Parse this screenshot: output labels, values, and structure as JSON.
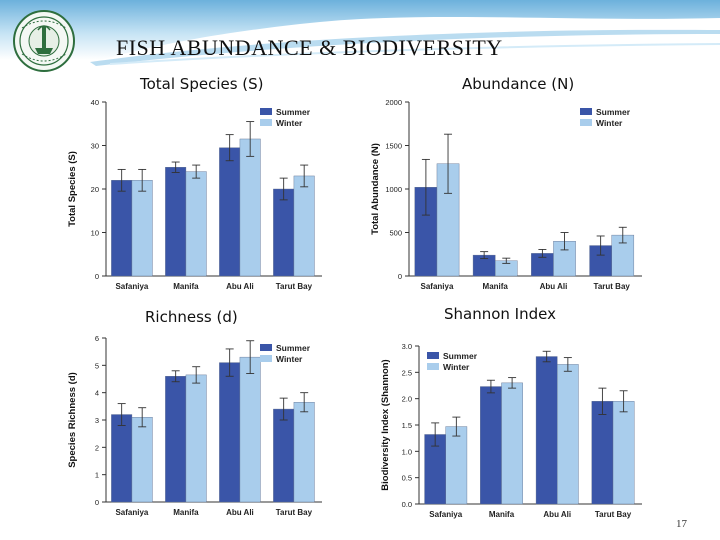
{
  "slide": {
    "title": "FISH ABUNDANCE & BIODIVERSITY",
    "page_number": "17",
    "colors": {
      "summer": "#3a55a8",
      "winter": "#a9cdec",
      "header_top": "#5ca8d8",
      "header_bottom": "#ffffff"
    }
  },
  "panel_titles": [
    "Total Species (S)",
    "Abundance (N)",
    "Richness (d)",
    "Shannon Index"
  ],
  "chart_data": [
    {
      "type": "bar",
      "title": "Total Species (S)",
      "xlabel": "",
      "ylabel": "Total Species (S)",
      "categories": [
        "Safaniya",
        "Manifa",
        "Abu Ali",
        "Tarut Bay"
      ],
      "series": [
        {
          "name": "Summer",
          "values": [
            22,
            25,
            29.5,
            20
          ],
          "errors": [
            2.5,
            1.2,
            3,
            2.5
          ]
        },
        {
          "name": "Winter",
          "values": [
            22,
            24,
            31.5,
            23
          ],
          "errors": [
            2.5,
            1.5,
            4,
            2.5
          ]
        }
      ],
      "ylim": [
        0,
        40
      ],
      "yticks": [
        "0",
        "10",
        "20",
        "30",
        "40"
      ],
      "legend": "top-right",
      "grid": false
    },
    {
      "type": "bar",
      "title": "Abundance (N)",
      "xlabel": "",
      "ylabel": "Total Abundance (N)",
      "categories": [
        "Safaniya",
        "Manifa",
        "Abu Ali",
        "Tarut Bay"
      ],
      "series": [
        {
          "name": "Summer",
          "values": [
            1020,
            240,
            260,
            350
          ],
          "errors": [
            320,
            40,
            45,
            110
          ]
        },
        {
          "name": "Winter",
          "values": [
            1290,
            175,
            400,
            470
          ],
          "errors": [
            340,
            30,
            100,
            90
          ]
        }
      ],
      "ylim": [
        0,
        2000
      ],
      "yticks": [
        "0",
        "500",
        "1000",
        "1500",
        "2000"
      ],
      "legend": "top-right",
      "grid": false
    },
    {
      "type": "bar",
      "title": "Richness (d)",
      "xlabel": "",
      "ylabel": "Species Richness (d)",
      "categories": [
        "Safaniya",
        "Manifa",
        "Abu Ali",
        "Tarut Bay"
      ],
      "series": [
        {
          "name": "Summer",
          "values": [
            3.2,
            4.6,
            5.1,
            3.4
          ],
          "errors": [
            0.4,
            0.2,
            0.5,
            0.4
          ]
        },
        {
          "name": "Winter",
          "values": [
            3.1,
            4.65,
            5.3,
            3.65
          ],
          "errors": [
            0.35,
            0.3,
            0.6,
            0.35
          ]
        }
      ],
      "ylim": [
        0,
        6
      ],
      "yticks": [
        "0",
        "1",
        "2",
        "3",
        "4",
        "5",
        "6"
      ],
      "legend": "top-right",
      "grid": false
    },
    {
      "type": "bar",
      "title": "Shannon Index",
      "xlabel": "",
      "ylabel": "Biodiversity Index (Shannon)",
      "categories": [
        "Safaniya",
        "Manifa",
        "Abu Ali",
        "Tarut Bay"
      ],
      "series": [
        {
          "name": "Summer",
          "values": [
            1.32,
            2.23,
            2.8,
            1.95
          ],
          "errors": [
            0.22,
            0.12,
            0.1,
            0.25
          ]
        },
        {
          "name": "Winter",
          "values": [
            1.47,
            2.3,
            2.65,
            1.95
          ],
          "errors": [
            0.18,
            0.1,
            0.13,
            0.2
          ]
        }
      ],
      "ylim": [
        0,
        3
      ],
      "yticks": [
        "0.0",
        "0.5",
        "1.0",
        "1.5",
        "2.0",
        "2.5",
        "3.0"
      ],
      "legend": "top-left",
      "grid": false
    }
  ]
}
